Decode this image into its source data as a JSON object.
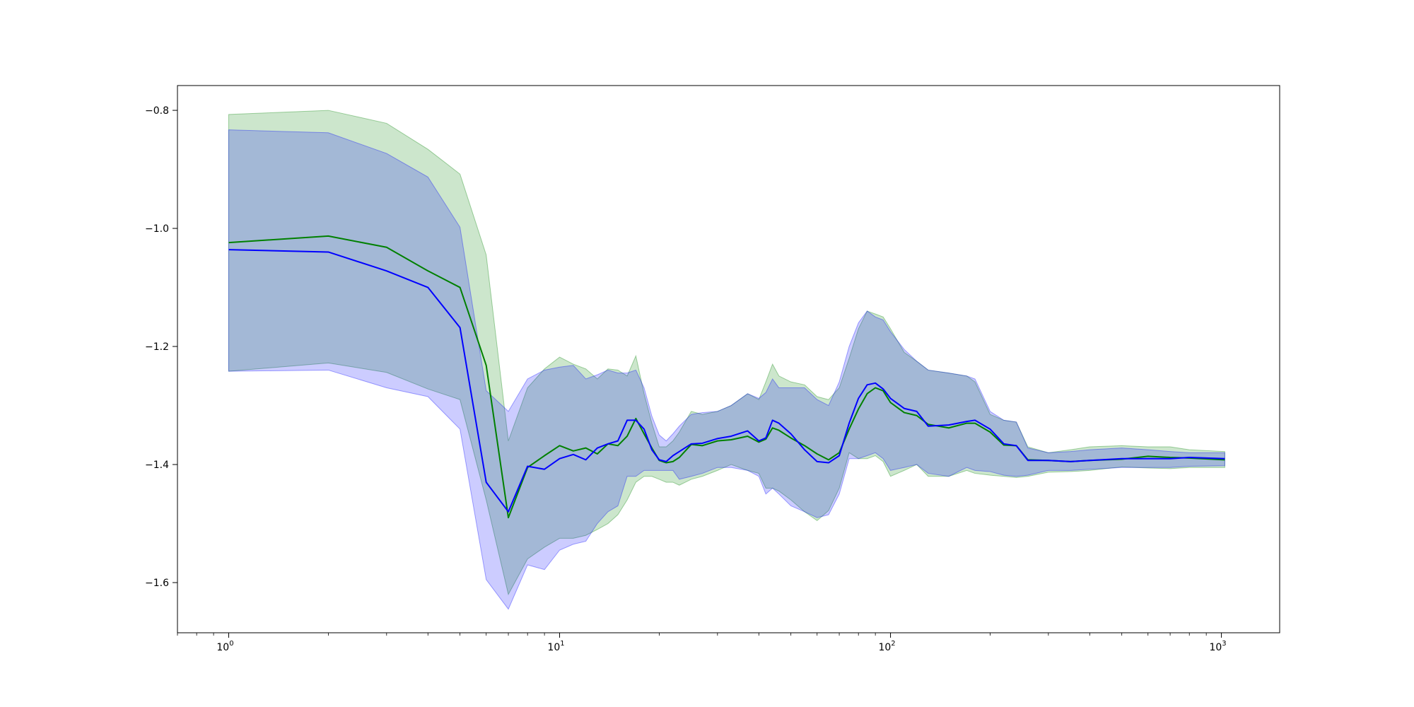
{
  "chart_data": {
    "type": "line",
    "title": "",
    "xlabel": "",
    "ylabel": "",
    "xscale": "log",
    "xlim": [
      0.7,
      1500
    ],
    "ylim": [
      -1.685,
      -0.758
    ],
    "grid": false,
    "legend": "none",
    "x_ticks": [
      {
        "value": 1,
        "base": "10",
        "exp": "0"
      },
      {
        "value": 10,
        "base": "10",
        "exp": "1"
      },
      {
        "value": 100,
        "base": "10",
        "exp": "2"
      },
      {
        "value": 1000,
        "base": "10",
        "exp": "3"
      }
    ],
    "y_ticks": [
      {
        "value": -0.8,
        "label": "−0.8"
      },
      {
        "value": -1.0,
        "label": "−1.0"
      },
      {
        "value": -1.2,
        "label": "−1.2"
      },
      {
        "value": -1.4,
        "label": "−1.4"
      },
      {
        "value": -1.6,
        "label": "−1.6"
      }
    ],
    "series": [
      {
        "color": "#008000",
        "band_color": "#008000",
        "band_opacity": 0.2,
        "x": [
          1,
          2,
          3,
          4,
          5,
          6,
          7,
          8,
          9,
          10,
          11,
          12,
          13,
          14,
          15,
          16,
          17,
          18,
          19,
          20,
          21,
          22,
          23,
          25,
          27,
          30,
          33,
          37,
          40,
          42,
          44,
          46,
          50,
          55,
          60,
          65,
          70,
          75,
          80,
          85,
          90,
          95,
          100,
          110,
          120,
          130,
          150,
          170,
          180,
          200,
          220,
          240,
          260,
          300,
          350,
          400,
          500,
          600,
          700,
          800,
          1024
        ],
        "y": [
          -1.024,
          -1.013,
          -1.032,
          -1.072,
          -1.1,
          -1.232,
          -1.49,
          -1.405,
          -1.385,
          -1.368,
          -1.377,
          -1.372,
          -1.382,
          -1.365,
          -1.368,
          -1.352,
          -1.322,
          -1.348,
          -1.372,
          -1.393,
          -1.397,
          -1.395,
          -1.388,
          -1.366,
          -1.368,
          -1.36,
          -1.358,
          -1.352,
          -1.362,
          -1.357,
          -1.338,
          -1.342,
          -1.355,
          -1.368,
          -1.382,
          -1.392,
          -1.38,
          -1.34,
          -1.306,
          -1.28,
          -1.27,
          -1.275,
          -1.295,
          -1.312,
          -1.317,
          -1.332,
          -1.338,
          -1.33,
          -1.33,
          -1.345,
          -1.367,
          -1.368,
          -1.392,
          -1.393,
          -1.395,
          -1.393,
          -1.391,
          -1.386,
          -1.388,
          -1.389,
          -1.392
        ],
        "lower": [
          -1.242,
          -1.228,
          -1.244,
          -1.272,
          -1.29,
          -1.46,
          -1.62,
          -1.56,
          -1.54,
          -1.525,
          -1.525,
          -1.52,
          -1.51,
          -1.5,
          -1.485,
          -1.46,
          -1.43,
          -1.42,
          -1.42,
          -1.425,
          -1.43,
          -1.43,
          -1.435,
          -1.425,
          -1.42,
          -1.41,
          -1.4,
          -1.41,
          -1.415,
          -1.44,
          -1.44,
          -1.445,
          -1.46,
          -1.48,
          -1.495,
          -1.478,
          -1.44,
          -1.38,
          -1.39,
          -1.39,
          -1.385,
          -1.395,
          -1.42,
          -1.41,
          -1.4,
          -1.42,
          -1.42,
          -1.41,
          -1.415,
          -1.418,
          -1.42,
          -1.422,
          -1.42,
          -1.413,
          -1.412,
          -1.41,
          -1.404,
          -1.406,
          -1.407,
          -1.405,
          -1.405
        ],
        "upper": [
          -0.807,
          -0.8,
          -0.822,
          -0.866,
          -0.908,
          -1.045,
          -1.36,
          -1.27,
          -1.238,
          -1.218,
          -1.23,
          -1.238,
          -1.255,
          -1.238,
          -1.24,
          -1.25,
          -1.216,
          -1.28,
          -1.33,
          -1.37,
          -1.37,
          -1.36,
          -1.345,
          -1.31,
          -1.315,
          -1.31,
          -1.3,
          -1.28,
          -1.29,
          -1.26,
          -1.23,
          -1.25,
          -1.26,
          -1.265,
          -1.285,
          -1.29,
          -1.27,
          -1.22,
          -1.17,
          -1.14,
          -1.145,
          -1.15,
          -1.17,
          -1.21,
          -1.225,
          -1.24,
          -1.245,
          -1.25,
          -1.26,
          -1.315,
          -1.325,
          -1.328,
          -1.37,
          -1.38,
          -1.375,
          -1.37,
          -1.368,
          -1.37,
          -1.37,
          -1.375,
          -1.378
        ]
      },
      {
        "color": "#0000ff",
        "band_color": "#0000ff",
        "band_opacity": 0.2,
        "x": [
          1,
          2,
          3,
          4,
          5,
          6,
          7,
          8,
          9,
          10,
          11,
          12,
          13,
          14,
          15,
          16,
          17,
          18,
          19,
          20,
          21,
          22,
          23,
          25,
          27,
          30,
          33,
          37,
          40,
          42,
          44,
          46,
          50,
          55,
          60,
          65,
          70,
          75,
          80,
          85,
          90,
          95,
          100,
          110,
          120,
          130,
          150,
          170,
          180,
          200,
          220,
          240,
          260,
          300,
          350,
          400,
          500,
          600,
          700,
          800,
          1024
        ],
        "y": [
          -1.036,
          -1.04,
          -1.072,
          -1.1,
          -1.168,
          -1.43,
          -1.48,
          -1.403,
          -1.408,
          -1.39,
          -1.383,
          -1.392,
          -1.372,
          -1.365,
          -1.36,
          -1.325,
          -1.325,
          -1.34,
          -1.375,
          -1.392,
          -1.395,
          -1.385,
          -1.378,
          -1.365,
          -1.364,
          -1.356,
          -1.352,
          -1.343,
          -1.36,
          -1.355,
          -1.325,
          -1.33,
          -1.348,
          -1.375,
          -1.395,
          -1.397,
          -1.385,
          -1.33,
          -1.288,
          -1.265,
          -1.262,
          -1.272,
          -1.288,
          -1.305,
          -1.31,
          -1.335,
          -1.333,
          -1.327,
          -1.325,
          -1.34,
          -1.365,
          -1.368,
          -1.393,
          -1.393,
          -1.395,
          -1.393,
          -1.39,
          -1.39,
          -1.39,
          -1.388,
          -1.39
        ],
        "lower": [
          -1.242,
          -1.24,
          -1.27,
          -1.285,
          -1.34,
          -1.595,
          -1.645,
          -1.57,
          -1.578,
          -1.545,
          -1.535,
          -1.53,
          -1.5,
          -1.48,
          -1.47,
          -1.42,
          -1.42,
          -1.41,
          -1.41,
          -1.41,
          -1.41,
          -1.41,
          -1.425,
          -1.42,
          -1.415,
          -1.405,
          -1.405,
          -1.41,
          -1.42,
          -1.45,
          -1.44,
          -1.45,
          -1.47,
          -1.48,
          -1.49,
          -1.485,
          -1.45,
          -1.39,
          -1.39,
          -1.385,
          -1.38,
          -1.39,
          -1.41,
          -1.405,
          -1.4,
          -1.415,
          -1.42,
          -1.405,
          -1.41,
          -1.412,
          -1.418,
          -1.42,
          -1.418,
          -1.41,
          -1.41,
          -1.408,
          -1.405,
          -1.405,
          -1.405,
          -1.403,
          -1.402
        ],
        "upper": [
          -0.833,
          -0.838,
          -0.873,
          -0.913,
          -0.998,
          -1.275,
          -1.31,
          -1.255,
          -1.24,
          -1.235,
          -1.232,
          -1.255,
          -1.248,
          -1.24,
          -1.245,
          -1.245,
          -1.24,
          -1.27,
          -1.318,
          -1.35,
          -1.36,
          -1.348,
          -1.335,
          -1.315,
          -1.312,
          -1.31,
          -1.3,
          -1.28,
          -1.288,
          -1.278,
          -1.255,
          -1.27,
          -1.27,
          -1.27,
          -1.29,
          -1.3,
          -1.26,
          -1.2,
          -1.16,
          -1.14,
          -1.15,
          -1.155,
          -1.175,
          -1.205,
          -1.225,
          -1.24,
          -1.245,
          -1.25,
          -1.255,
          -1.31,
          -1.325,
          -1.328,
          -1.372,
          -1.38,
          -1.378,
          -1.375,
          -1.372,
          -1.375,
          -1.378,
          -1.38,
          -1.38
        ]
      }
    ]
  }
}
